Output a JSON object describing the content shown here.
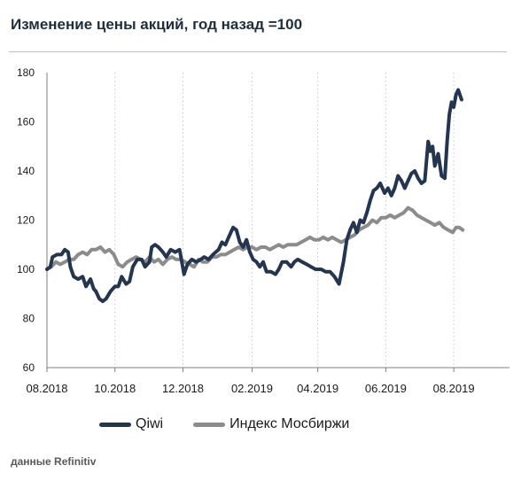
{
  "title": "Изменение цены акций, год назад =100",
  "source": "данные Refinitiv",
  "colors": {
    "qiwi": "#243550",
    "moex": "#8c8c8c",
    "grid": "#c8c8c8",
    "axis": "#7f7f7f"
  },
  "chart_data": {
    "type": "line",
    "title": "Изменение цены акций, год назад =100",
    "xlabel": "",
    "ylabel": "",
    "ylim": [
      60,
      180
    ],
    "yticks": [
      60,
      80,
      100,
      120,
      140,
      160,
      180
    ],
    "xlim": [
      "2018-08-01",
      "2019-09-20"
    ],
    "xticks": [
      {
        "date": "2018-08-01",
        "label": "08.2018"
      },
      {
        "date": "2018-10-01",
        "label": "10.2018"
      },
      {
        "date": "2018-12-01",
        "label": "12.2018"
      },
      {
        "date": "2019-02-01",
        "label": "02.2019"
      },
      {
        "date": "2019-04-01",
        "label": "04.2019"
      },
      {
        "date": "2019-06-01",
        "label": "06.2019"
      },
      {
        "date": "2019-08-01",
        "label": "08.2019"
      }
    ],
    "grid": "vertical dotted",
    "legend": "bottom",
    "series": [
      {
        "name": "Qiwi",
        "color": "#243550",
        "points": [
          [
            "2018-08-01",
            100
          ],
          [
            "2018-08-04",
            101
          ],
          [
            "2018-08-06",
            105
          ],
          [
            "2018-08-10",
            106
          ],
          [
            "2018-08-14",
            106
          ],
          [
            "2018-08-17",
            108
          ],
          [
            "2018-08-20",
            107
          ],
          [
            "2018-08-22",
            101
          ],
          [
            "2018-08-25",
            97
          ],
          [
            "2018-08-29",
            96
          ],
          [
            "2018-09-02",
            97
          ],
          [
            "2018-09-05",
            93
          ],
          [
            "2018-09-09",
            96
          ],
          [
            "2018-09-12",
            92
          ],
          [
            "2018-09-14",
            91
          ],
          [
            "2018-09-17",
            88
          ],
          [
            "2018-09-20",
            87
          ],
          [
            "2018-09-23",
            88
          ],
          [
            "2018-09-27",
            91
          ],
          [
            "2018-10-01",
            93
          ],
          [
            "2018-10-04",
            93
          ],
          [
            "2018-10-07",
            97
          ],
          [
            "2018-10-11",
            94
          ],
          [
            "2018-10-14",
            95
          ],
          [
            "2018-10-17",
            101
          ],
          [
            "2018-10-21",
            104
          ],
          [
            "2018-10-25",
            104
          ],
          [
            "2018-10-28",
            101
          ],
          [
            "2018-11-01",
            103
          ],
          [
            "2018-11-03",
            109
          ],
          [
            "2018-11-06",
            110
          ],
          [
            "2018-11-09",
            109
          ],
          [
            "2018-11-13",
            107
          ],
          [
            "2018-11-16",
            105
          ],
          [
            "2018-11-20",
            108
          ],
          [
            "2018-11-24",
            107
          ],
          [
            "2018-11-28",
            108
          ],
          [
            "2018-11-30",
            103
          ],
          [
            "2018-12-02",
            98
          ],
          [
            "2018-12-05",
            102
          ],
          [
            "2018-12-09",
            104
          ],
          [
            "2018-12-13",
            103
          ],
          [
            "2018-12-17",
            104
          ],
          [
            "2018-12-20",
            105
          ],
          [
            "2018-12-24",
            104
          ],
          [
            "2018-12-28",
            106
          ],
          [
            "2019-01-02",
            108
          ],
          [
            "2019-01-05",
            111
          ],
          [
            "2019-01-08",
            110
          ],
          [
            "2019-01-12",
            114
          ],
          [
            "2019-01-15",
            117
          ],
          [
            "2019-01-18",
            116
          ],
          [
            "2019-01-21",
            111
          ],
          [
            "2019-01-24",
            109
          ],
          [
            "2019-01-27",
            112
          ],
          [
            "2019-01-30",
            107
          ],
          [
            "2019-02-02",
            104
          ],
          [
            "2019-02-05",
            103
          ],
          [
            "2019-02-08",
            101
          ],
          [
            "2019-02-11",
            103
          ],
          [
            "2019-02-14",
            99
          ],
          [
            "2019-02-18",
            99
          ],
          [
            "2019-02-22",
            98
          ],
          [
            "2019-02-25",
            100
          ],
          [
            "2019-02-28",
            103
          ],
          [
            "2019-03-04",
            103
          ],
          [
            "2019-03-08",
            101
          ],
          [
            "2019-03-11",
            103
          ],
          [
            "2019-03-14",
            104
          ],
          [
            "2019-03-18",
            103
          ],
          [
            "2019-03-22",
            102
          ],
          [
            "2019-03-26",
            101
          ],
          [
            "2019-03-30",
            100
          ],
          [
            "2019-04-04",
            100
          ],
          [
            "2019-04-08",
            99
          ],
          [
            "2019-04-12",
            99
          ],
          [
            "2019-04-16",
            97
          ],
          [
            "2019-04-20",
            94
          ],
          [
            "2019-04-24",
            103
          ],
          [
            "2019-04-27",
            112
          ],
          [
            "2019-04-30",
            116
          ],
          [
            "2019-05-03",
            119
          ],
          [
            "2019-05-06",
            115
          ],
          [
            "2019-05-09",
            120
          ],
          [
            "2019-05-12",
            119
          ],
          [
            "2019-05-15",
            123
          ],
          [
            "2019-05-18",
            128
          ],
          [
            "2019-05-21",
            132
          ],
          [
            "2019-05-24",
            133
          ],
          [
            "2019-05-27",
            135
          ],
          [
            "2019-05-31",
            131
          ],
          [
            "2019-06-03",
            133
          ],
          [
            "2019-06-06",
            130
          ],
          [
            "2019-06-09",
            133
          ],
          [
            "2019-06-12",
            138
          ],
          [
            "2019-06-15",
            136
          ],
          [
            "2019-06-18",
            133
          ],
          [
            "2019-06-21",
            136
          ],
          [
            "2019-06-24",
            139
          ],
          [
            "2019-06-27",
            140
          ],
          [
            "2019-06-30",
            137
          ],
          [
            "2019-07-03",
            135
          ],
          [
            "2019-07-06",
            136
          ],
          [
            "2019-07-09",
            152
          ],
          [
            "2019-07-11",
            148
          ],
          [
            "2019-07-13",
            150
          ],
          [
            "2019-07-15",
            142
          ],
          [
            "2019-07-18",
            147
          ],
          [
            "2019-07-21",
            138
          ],
          [
            "2019-07-24",
            137
          ],
          [
            "2019-07-26",
            152
          ],
          [
            "2019-07-28",
            163
          ],
          [
            "2019-07-30",
            168
          ],
          [
            "2019-08-01",
            166
          ],
          [
            "2019-08-03",
            171
          ],
          [
            "2019-08-05",
            173
          ],
          [
            "2019-08-08",
            169
          ]
        ]
      },
      {
        "name": "Индекс Мосбиржи",
        "color": "#8c8c8c",
        "points": [
          [
            "2018-08-01",
            100
          ],
          [
            "2018-08-05",
            101
          ],
          [
            "2018-08-09",
            103
          ],
          [
            "2018-08-13",
            102
          ],
          [
            "2018-08-17",
            103
          ],
          [
            "2018-08-21",
            104
          ],
          [
            "2018-08-25",
            104
          ],
          [
            "2018-08-29",
            106
          ],
          [
            "2018-09-02",
            107
          ],
          [
            "2018-09-06",
            106
          ],
          [
            "2018-09-10",
            108
          ],
          [
            "2018-09-14",
            108
          ],
          [
            "2018-09-18",
            109
          ],
          [
            "2018-09-22",
            107
          ],
          [
            "2018-09-26",
            108
          ],
          [
            "2018-09-30",
            106
          ],
          [
            "2018-10-04",
            102
          ],
          [
            "2018-10-08",
            101
          ],
          [
            "2018-10-12",
            103
          ],
          [
            "2018-10-16",
            104
          ],
          [
            "2018-10-20",
            105
          ],
          [
            "2018-10-24",
            104
          ],
          [
            "2018-10-28",
            103
          ],
          [
            "2018-11-01",
            105
          ],
          [
            "2018-11-05",
            103
          ],
          [
            "2018-11-09",
            104
          ],
          [
            "2018-11-13",
            102
          ],
          [
            "2018-11-17",
            104
          ],
          [
            "2018-11-21",
            105
          ],
          [
            "2018-11-25",
            104
          ],
          [
            "2018-11-29",
            104
          ],
          [
            "2018-12-03",
            103
          ],
          [
            "2018-12-07",
            102
          ],
          [
            "2018-12-11",
            101
          ],
          [
            "2018-12-15",
            104
          ],
          [
            "2018-12-19",
            103
          ],
          [
            "2018-12-23",
            103
          ],
          [
            "2018-12-27",
            105
          ],
          [
            "2018-12-31",
            105
          ],
          [
            "2019-01-04",
            106
          ],
          [
            "2019-01-08",
            106
          ],
          [
            "2019-01-12",
            107
          ],
          [
            "2019-01-16",
            108
          ],
          [
            "2019-01-20",
            109
          ],
          [
            "2019-01-24",
            108
          ],
          [
            "2019-01-28",
            109
          ],
          [
            "2019-02-01",
            109
          ],
          [
            "2019-02-05",
            108
          ],
          [
            "2019-02-09",
            109
          ],
          [
            "2019-02-13",
            109
          ],
          [
            "2019-02-17",
            108
          ],
          [
            "2019-02-21",
            109
          ],
          [
            "2019-02-25",
            110
          ],
          [
            "2019-03-01",
            109
          ],
          [
            "2019-03-05",
            110
          ],
          [
            "2019-03-09",
            110
          ],
          [
            "2019-03-13",
            110
          ],
          [
            "2019-03-17",
            111
          ],
          [
            "2019-03-21",
            112
          ],
          [
            "2019-03-25",
            113
          ],
          [
            "2019-03-29",
            112
          ],
          [
            "2019-04-02",
            112
          ],
          [
            "2019-04-06",
            113
          ],
          [
            "2019-04-10",
            112
          ],
          [
            "2019-04-14",
            113
          ],
          [
            "2019-04-18",
            112
          ],
          [
            "2019-04-22",
            111
          ],
          [
            "2019-04-26",
            112
          ],
          [
            "2019-04-30",
            113
          ],
          [
            "2019-05-04",
            114
          ],
          [
            "2019-05-08",
            116
          ],
          [
            "2019-05-12",
            117
          ],
          [
            "2019-05-16",
            118
          ],
          [
            "2019-05-20",
            120
          ],
          [
            "2019-05-24",
            119
          ],
          [
            "2019-05-28",
            121
          ],
          [
            "2019-06-01",
            121
          ],
          [
            "2019-06-05",
            122
          ],
          [
            "2019-06-09",
            121
          ],
          [
            "2019-06-13",
            122
          ],
          [
            "2019-06-17",
            123
          ],
          [
            "2019-06-21",
            125
          ],
          [
            "2019-06-25",
            124
          ],
          [
            "2019-06-29",
            122
          ],
          [
            "2019-07-03",
            121
          ],
          [
            "2019-07-07",
            120
          ],
          [
            "2019-07-11",
            119
          ],
          [
            "2019-07-15",
            118
          ],
          [
            "2019-07-19",
            119
          ],
          [
            "2019-07-23",
            117
          ],
          [
            "2019-07-27",
            116
          ],
          [
            "2019-07-31",
            115
          ],
          [
            "2019-08-03",
            117
          ],
          [
            "2019-08-06",
            117
          ],
          [
            "2019-08-09",
            116
          ]
        ]
      }
    ]
  }
}
